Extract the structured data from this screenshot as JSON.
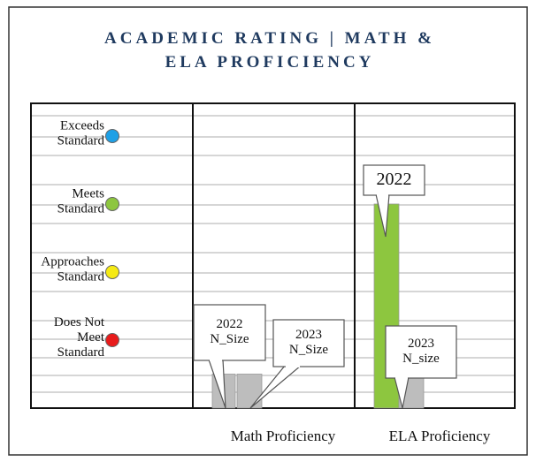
{
  "chart_data": {
    "type": "bar",
    "title_lines": [
      "ACADEMIC RATING | MATH &",
      "ELA PROFICIENCY"
    ],
    "categories": [
      "Math Proficiency",
      "ELA Proficiency"
    ],
    "ylim": [
      0,
      4.48
    ],
    "yticks": [
      {
        "value": 4,
        "label": "Exceeds\nStandard"
      },
      {
        "value": 3,
        "label": "Meets\nStandard"
      },
      {
        "value": 2,
        "label": "Approaches\nStandard"
      },
      {
        "value": 1,
        "label": "Does Not\nMeet\nStandard"
      }
    ],
    "ytick_colors": [
      "#1ea0e6",
      "#8dc63f",
      "#f5ea14",
      "#e81c1c"
    ],
    "series": [
      {
        "name": "2022",
        "values": [
          0.5,
          3
        ],
        "colors": [
          "#bdbdbd",
          "#8dc63f"
        ]
      },
      {
        "name": "2023",
        "values": [
          0.5,
          0.5
        ],
        "colors": [
          "#bdbdbd",
          "#bdbdbd"
        ]
      }
    ],
    "annotations": [
      "2022\nN_Size",
      "2023\nN_Size",
      "2022",
      "2023\nN_size"
    ]
  }
}
